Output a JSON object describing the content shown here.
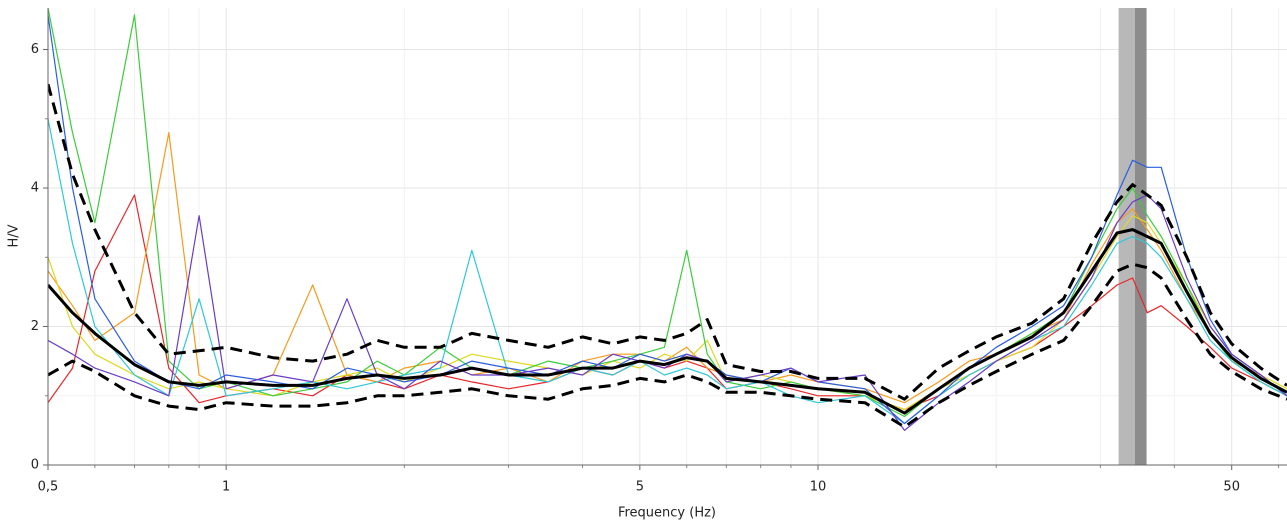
{
  "chart_data": {
    "type": "line",
    "x_label": "Frequency (Hz)",
    "y_label": "H/V",
    "xscale": "log",
    "grid": true,
    "xlim": [
      0.5,
      62
    ],
    "ylim": [
      0,
      6.6
    ],
    "xticks": [
      {
        "value": 0.5,
        "label": "0,5"
      },
      1,
      5,
      10,
      50
    ],
    "xminorticks": [
      0.6,
      0.7,
      0.8,
      0.9,
      2,
      3,
      4,
      6,
      7,
      8,
      9,
      20,
      30,
      40,
      60
    ],
    "yticks": [
      0,
      2,
      4,
      6
    ],
    "yminorticks": [
      1,
      3,
      5
    ],
    "peak_band": {
      "low": 32.2,
      "f0": 34.3,
      "high": 35.9
    },
    "x": [
      0.5,
      0.55,
      0.6,
      0.7,
      0.8,
      0.9,
      1,
      1.2,
      1.4,
      1.6,
      1.8,
      2,
      2.3,
      2.6,
      3,
      3.5,
      4,
      4.5,
      5,
      5.5,
      6,
      6.5,
      7,
      8,
      9,
      10,
      12,
      14,
      16,
      18,
      20,
      23,
      26,
      29,
      32,
      34,
      36,
      38,
      42,
      46,
      50,
      56,
      62
    ],
    "series": [
      {
        "color": "#e8262a",
        "values": [
          0.9,
          1.4,
          2.8,
          3.9,
          1.4,
          0.9,
          1.0,
          1.1,
          1.0,
          1.3,
          1.2,
          1.1,
          1.3,
          1.2,
          1.1,
          1.2,
          1.4,
          1.3,
          1.5,
          1.4,
          1.5,
          1.4,
          1.1,
          1.2,
          1.1,
          1.0,
          1.0,
          0.8,
          1.0,
          1.3,
          1.5,
          1.7,
          2.0,
          2.3,
          2.6,
          2.7,
          2.2,
          2.3,
          2.0,
          1.7,
          1.4,
          1.2,
          1.0
        ]
      },
      {
        "color": "#f59b1e",
        "values": [
          2.8,
          2.3,
          1.8,
          2.2,
          4.8,
          1.3,
          1.1,
          1.3,
          2.6,
          1.3,
          1.2,
          1.4,
          1.5,
          1.3,
          1.4,
          1.2,
          1.5,
          1.6,
          1.6,
          1.5,
          1.7,
          1.4,
          1.3,
          1.2,
          1.3,
          1.2,
          1.1,
          0.9,
          1.2,
          1.5,
          1.6,
          1.9,
          2.1,
          2.9,
          3.5,
          3.7,
          3.4,
          3.1,
          2.4,
          1.9,
          1.5,
          1.3,
          1.0
        ]
      },
      {
        "color": "#e0d820",
        "values": [
          3.0,
          2.0,
          1.6,
          1.3,
          1.1,
          1.2,
          1.1,
          1.0,
          1.2,
          1.3,
          1.4,
          1.2,
          1.4,
          1.6,
          1.5,
          1.4,
          1.3,
          1.5,
          1.4,
          1.6,
          1.5,
          1.8,
          1.2,
          1.3,
          1.2,
          1.1,
          1.0,
          0.8,
          1.1,
          1.3,
          1.5,
          1.7,
          2.1,
          2.7,
          3.3,
          3.6,
          3.5,
          3.2,
          2.6,
          2.0,
          1.6,
          1.3,
          1.1
        ]
      },
      {
        "color": "#3ccc3c",
        "values": [
          6.6,
          4.8,
          3.5,
          6.5,
          1.5,
          1.1,
          1.2,
          1.0,
          1.1,
          1.2,
          1.5,
          1.3,
          1.7,
          1.4,
          1.3,
          1.5,
          1.4,
          1.5,
          1.6,
          1.7,
          3.1,
          1.6,
          1.2,
          1.1,
          1.2,
          1.1,
          1.0,
          0.7,
          1.1,
          1.4,
          1.6,
          1.9,
          2.2,
          3.0,
          3.7,
          4.0,
          3.6,
          3.3,
          2.6,
          1.9,
          1.5,
          1.2,
          1.0
        ]
      },
      {
        "color": "#2ec8d8",
        "values": [
          5.0,
          3.2,
          2.0,
          1.3,
          1.0,
          2.4,
          1.0,
          1.1,
          1.2,
          1.1,
          1.2,
          1.3,
          1.4,
          3.1,
          1.3,
          1.2,
          1.4,
          1.3,
          1.5,
          1.3,
          1.4,
          1.3,
          1.1,
          1.2,
          1.0,
          0.9,
          1.0,
          0.6,
          1.0,
          1.3,
          1.5,
          1.8,
          2.0,
          2.6,
          3.2,
          3.3,
          3.2,
          3.0,
          2.4,
          1.8,
          1.5,
          1.2,
          1.0
        ]
      },
      {
        "color": "#2a5ee0",
        "values": [
          6.5,
          4.0,
          2.4,
          1.5,
          1.2,
          1.1,
          1.3,
          1.2,
          1.1,
          1.4,
          1.3,
          1.2,
          1.3,
          1.5,
          1.4,
          1.3,
          1.5,
          1.4,
          1.6,
          1.5,
          1.6,
          1.5,
          1.3,
          1.2,
          1.4,
          1.2,
          1.1,
          0.6,
          1.0,
          1.4,
          1.7,
          2.0,
          2.3,
          3.0,
          3.9,
          4.4,
          4.3,
          4.3,
          3.0,
          2.1,
          1.6,
          1.3,
          1.0
        ]
      },
      {
        "color": "#6a3cc8",
        "values": [
          1.8,
          1.6,
          1.4,
          1.2,
          1.0,
          3.6,
          1.1,
          1.3,
          1.2,
          2.4,
          1.3,
          1.1,
          1.5,
          1.3,
          1.3,
          1.4,
          1.3,
          1.6,
          1.5,
          1.4,
          1.6,
          1.5,
          1.2,
          1.3,
          1.4,
          1.2,
          1.3,
          0.5,
          0.9,
          1.2,
          1.5,
          1.8,
          2.1,
          2.7,
          3.5,
          3.8,
          3.9,
          3.7,
          2.7,
          2.0,
          1.6,
          1.3,
          1.0
        ]
      },
      {
        "color": "#000000",
        "bold": true,
        "values": [
          2.6,
          2.2,
          1.9,
          1.45,
          1.2,
          1.15,
          1.2,
          1.15,
          1.15,
          1.25,
          1.3,
          1.25,
          1.3,
          1.4,
          1.3,
          1.3,
          1.4,
          1.4,
          1.5,
          1.45,
          1.55,
          1.5,
          1.25,
          1.2,
          1.15,
          1.1,
          1.05,
          0.75,
          1.1,
          1.4,
          1.6,
          1.85,
          2.2,
          2.8,
          3.35,
          3.4,
          3.3,
          3.2,
          2.5,
          1.9,
          1.55,
          1.25,
          1.05
        ]
      },
      {
        "color": "#000000",
        "dashed": true,
        "values": [
          5.5,
          4.2,
          3.4,
          2.2,
          1.6,
          1.65,
          1.7,
          1.55,
          1.5,
          1.6,
          1.8,
          1.7,
          1.7,
          1.9,
          1.8,
          1.7,
          1.85,
          1.75,
          1.85,
          1.8,
          1.9,
          2.1,
          1.45,
          1.35,
          1.35,
          1.25,
          1.25,
          0.95,
          1.4,
          1.65,
          1.85,
          2.05,
          2.4,
          3.2,
          3.8,
          4.05,
          3.9,
          3.75,
          3.0,
          2.2,
          1.75,
          1.4,
          1.15
        ]
      },
      {
        "color": "#000000",
        "dashed": true,
        "values": [
          1.3,
          1.5,
          1.35,
          1.0,
          0.85,
          0.8,
          0.9,
          0.85,
          0.85,
          0.9,
          1.0,
          1.0,
          1.05,
          1.1,
          1.0,
          0.95,
          1.1,
          1.15,
          1.25,
          1.2,
          1.3,
          1.2,
          1.05,
          1.05,
          1.0,
          0.95,
          0.9,
          0.55,
          0.9,
          1.15,
          1.35,
          1.6,
          1.8,
          2.3,
          2.8,
          2.9,
          2.85,
          2.7,
          2.1,
          1.6,
          1.35,
          1.1,
          0.95
        ]
      }
    ]
  }
}
